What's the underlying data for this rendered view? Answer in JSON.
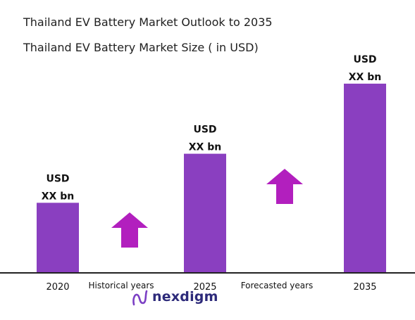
{
  "chart_data": {
    "type": "bar",
    "title": "Thailand EV Battery Market Outlook to 2035",
    "subtitle": "Thailand EV Battery Market Size ( in USD)",
    "categories": [
      "2020",
      "2025",
      "2035"
    ],
    "values": [
      1.0,
      1.7,
      2.7
    ],
    "value_labels": [
      [
        "USD",
        "XX bn"
      ],
      [
        "USD",
        "XX bn"
      ],
      [
        "USD",
        "XX bn"
      ]
    ],
    "ylim": [
      0,
      2.85
    ],
    "grid": false,
    "legend": "none",
    "period_labels": [
      "Historical years",
      "Forecasted years"
    ],
    "bar_color": "#8a3fc0",
    "arrow_color": "#b21fbe"
  },
  "brand": {
    "name": "nexdigm",
    "logo_color": "#2d2a7a",
    "logo_accent": "#7b3fc4"
  }
}
